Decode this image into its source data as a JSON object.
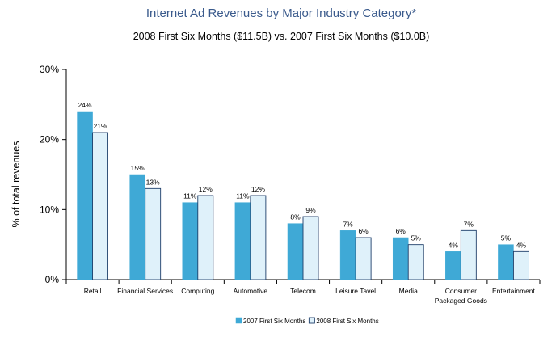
{
  "chart_data": {
    "type": "bar",
    "title": "Internet Ad Revenues by Major Industry Category*",
    "subtitle": "2008 First Six Months ($11.5B) vs. 2007 First Six Months ($10.0B)",
    "ylabel": "% of total revenues",
    "xlabel": "",
    "ylim": [
      0,
      30
    ],
    "yticks": [
      0,
      10,
      20,
      30
    ],
    "ytick_labels": [
      "0%",
      "10%",
      "20%",
      "30%"
    ],
    "categories": [
      [
        "Retail"
      ],
      [
        "Financial Services"
      ],
      [
        "Computing"
      ],
      [
        "Automotive"
      ],
      [
        "Telecom"
      ],
      [
        "Leisure Tavel"
      ],
      [
        "Media"
      ],
      [
        "Consumer",
        "Packaged Goods"
      ],
      [
        "Entertainment"
      ]
    ],
    "series": [
      {
        "name": "2007 First Six Months",
        "values": [
          24,
          15,
          11,
          11,
          8,
          7,
          6,
          4,
          5
        ],
        "labels": [
          "24%",
          "15%",
          "11%",
          "11%",
          "8%",
          "7%",
          "6%",
          "4%",
          "5%"
        ],
        "color": "#3fa9d6"
      },
      {
        "name": "2008 First Six Months",
        "values": [
          21,
          13,
          12,
          12,
          9,
          6,
          5,
          7,
          4
        ],
        "labels": [
          "21%",
          "13%",
          "12%",
          "12%",
          "9%",
          "6%",
          "5%",
          "7%",
          "4%"
        ],
        "color": "#dff1fa"
      }
    ],
    "grid": false,
    "legend_position": "bottom-center"
  }
}
